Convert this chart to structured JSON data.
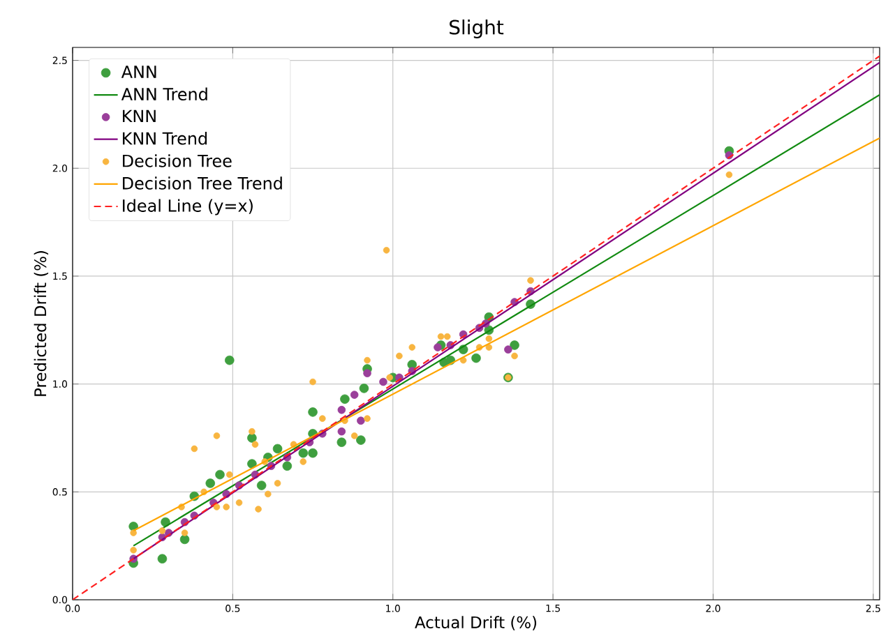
{
  "chart_data": {
    "type": "scatter",
    "title": "Slight",
    "xlabel": "Actual Drift (%)",
    "ylabel": "Predicted Drift (%)",
    "xlim": [
      0,
      2.52
    ],
    "ylim": [
      0,
      2.56
    ],
    "xticks": [
      {
        "value": 0,
        "label": "0.0"
      },
      {
        "value": 0.5,
        "label": "0.5"
      },
      {
        "value": 1,
        "label": "1.0"
      },
      {
        "value": 1.5,
        "label": "1.5"
      },
      {
        "value": 2,
        "label": "2.0"
      },
      {
        "value": 2.5,
        "label": "2.5"
      }
    ],
    "yticks": [
      {
        "value": 0,
        "label": "0.0"
      },
      {
        "value": 0.5,
        "label": "0.5"
      },
      {
        "value": 1,
        "label": "1.0"
      },
      {
        "value": 1.5,
        "label": "1.5"
      },
      {
        "value": 2,
        "label": "2.0"
      },
      {
        "value": 2.5,
        "label": "2.5"
      }
    ],
    "grid": true,
    "legend": "top left",
    "series": [
      {
        "name": "ANN",
        "marker": "circle",
        "color": "#3f9f3f",
        "x": [
          0.19,
          0.19,
          0.28,
          0.29,
          0.35,
          0.38,
          0.43,
          0.46,
          0.49,
          0.56,
          0.56,
          0.59,
          0.61,
          0.64,
          0.67,
          0.72,
          0.75,
          0.75,
          0.75,
          0.84,
          0.85,
          0.9,
          0.91,
          0.92,
          1.0,
          1.06,
          1.15,
          1.16,
          1.18,
          1.22,
          1.26,
          1.3,
          1.3,
          1.36,
          1.38,
          1.43,
          2.05
        ],
        "values": [
          0.34,
          0.17,
          0.19,
          0.36,
          0.28,
          0.48,
          0.54,
          0.58,
          1.11,
          0.75,
          0.63,
          0.53,
          0.66,
          0.7,
          0.62,
          0.68,
          0.87,
          0.68,
          0.77,
          0.73,
          0.93,
          0.74,
          0.98,
          1.07,
          1.03,
          1.09,
          1.18,
          1.1,
          1.11,
          1.16,
          1.12,
          1.31,
          1.25,
          1.03,
          1.18,
          1.37,
          2.08
        ]
      },
      {
        "name": "ANN Trend",
        "type": "line",
        "marker": "none",
        "color": "#118a11",
        "x": [
          0.19,
          2.52
        ],
        "values": [
          0.25,
          2.34
        ]
      },
      {
        "name": "KNN",
        "marker": "circle",
        "color": "#9a3f9a",
        "x": [
          0.19,
          0.28,
          0.3,
          0.35,
          0.38,
          0.44,
          0.48,
          0.52,
          0.57,
          0.62,
          0.67,
          0.74,
          0.78,
          0.84,
          0.84,
          0.88,
          0.9,
          0.92,
          0.97,
          1.02,
          1.06,
          1.14,
          1.18,
          1.22,
          1.27,
          1.29,
          1.36,
          1.38,
          1.43,
          2.05
        ],
        "values": [
          0.19,
          0.29,
          0.31,
          0.36,
          0.39,
          0.45,
          0.49,
          0.53,
          0.58,
          0.62,
          0.66,
          0.73,
          0.77,
          0.78,
          0.88,
          0.95,
          0.83,
          1.05,
          1.01,
          1.03,
          1.06,
          1.17,
          1.18,
          1.23,
          1.26,
          1.28,
          1.16,
          1.38,
          1.43,
          2.06
        ]
      },
      {
        "name": "KNN Trend",
        "type": "line",
        "marker": "none",
        "color": "#800080",
        "x": [
          0.19,
          2.52
        ],
        "values": [
          0.19,
          2.49
        ]
      },
      {
        "name": "Decision Tree",
        "marker": "circle",
        "color": "#f8b540",
        "x": [
          0.19,
          0.19,
          0.28,
          0.34,
          0.35,
          0.38,
          0.41,
          0.45,
          0.45,
          0.48,
          0.49,
          0.52,
          0.56,
          0.57,
          0.58,
          0.6,
          0.61,
          0.64,
          0.69,
          0.72,
          0.75,
          0.78,
          0.85,
          0.88,
          0.92,
          0.92,
          0.98,
          0.99,
          1.02,
          1.06,
          1.15,
          1.17,
          1.22,
          1.27,
          1.3,
          1.3,
          1.36,
          1.38,
          1.43,
          2.05
        ],
        "values": [
          0.31,
          0.23,
          0.32,
          0.43,
          0.31,
          0.7,
          0.5,
          0.76,
          0.43,
          0.43,
          0.58,
          0.45,
          0.78,
          0.72,
          0.42,
          0.64,
          0.49,
          0.54,
          0.72,
          0.64,
          1.01,
          0.84,
          0.83,
          0.76,
          1.11,
          0.84,
          1.62,
          1.03,
          1.13,
          1.17,
          1.22,
          1.22,
          1.11,
          1.17,
          1.21,
          1.17,
          1.03,
          1.13,
          1.48,
          1.97
        ]
      },
      {
        "name": "Decision Tree Trend",
        "type": "line",
        "marker": "none",
        "color": "#ffa500",
        "x": [
          0.19,
          2.52
        ],
        "values": [
          0.32,
          2.14
        ]
      },
      {
        "name": "Ideal Line (y=x)",
        "type": "line",
        "marker": "none",
        "color": "#ff2020",
        "line_style": "dashed",
        "x": [
          0,
          2.52
        ],
        "values": [
          0,
          2.52
        ]
      }
    ]
  }
}
